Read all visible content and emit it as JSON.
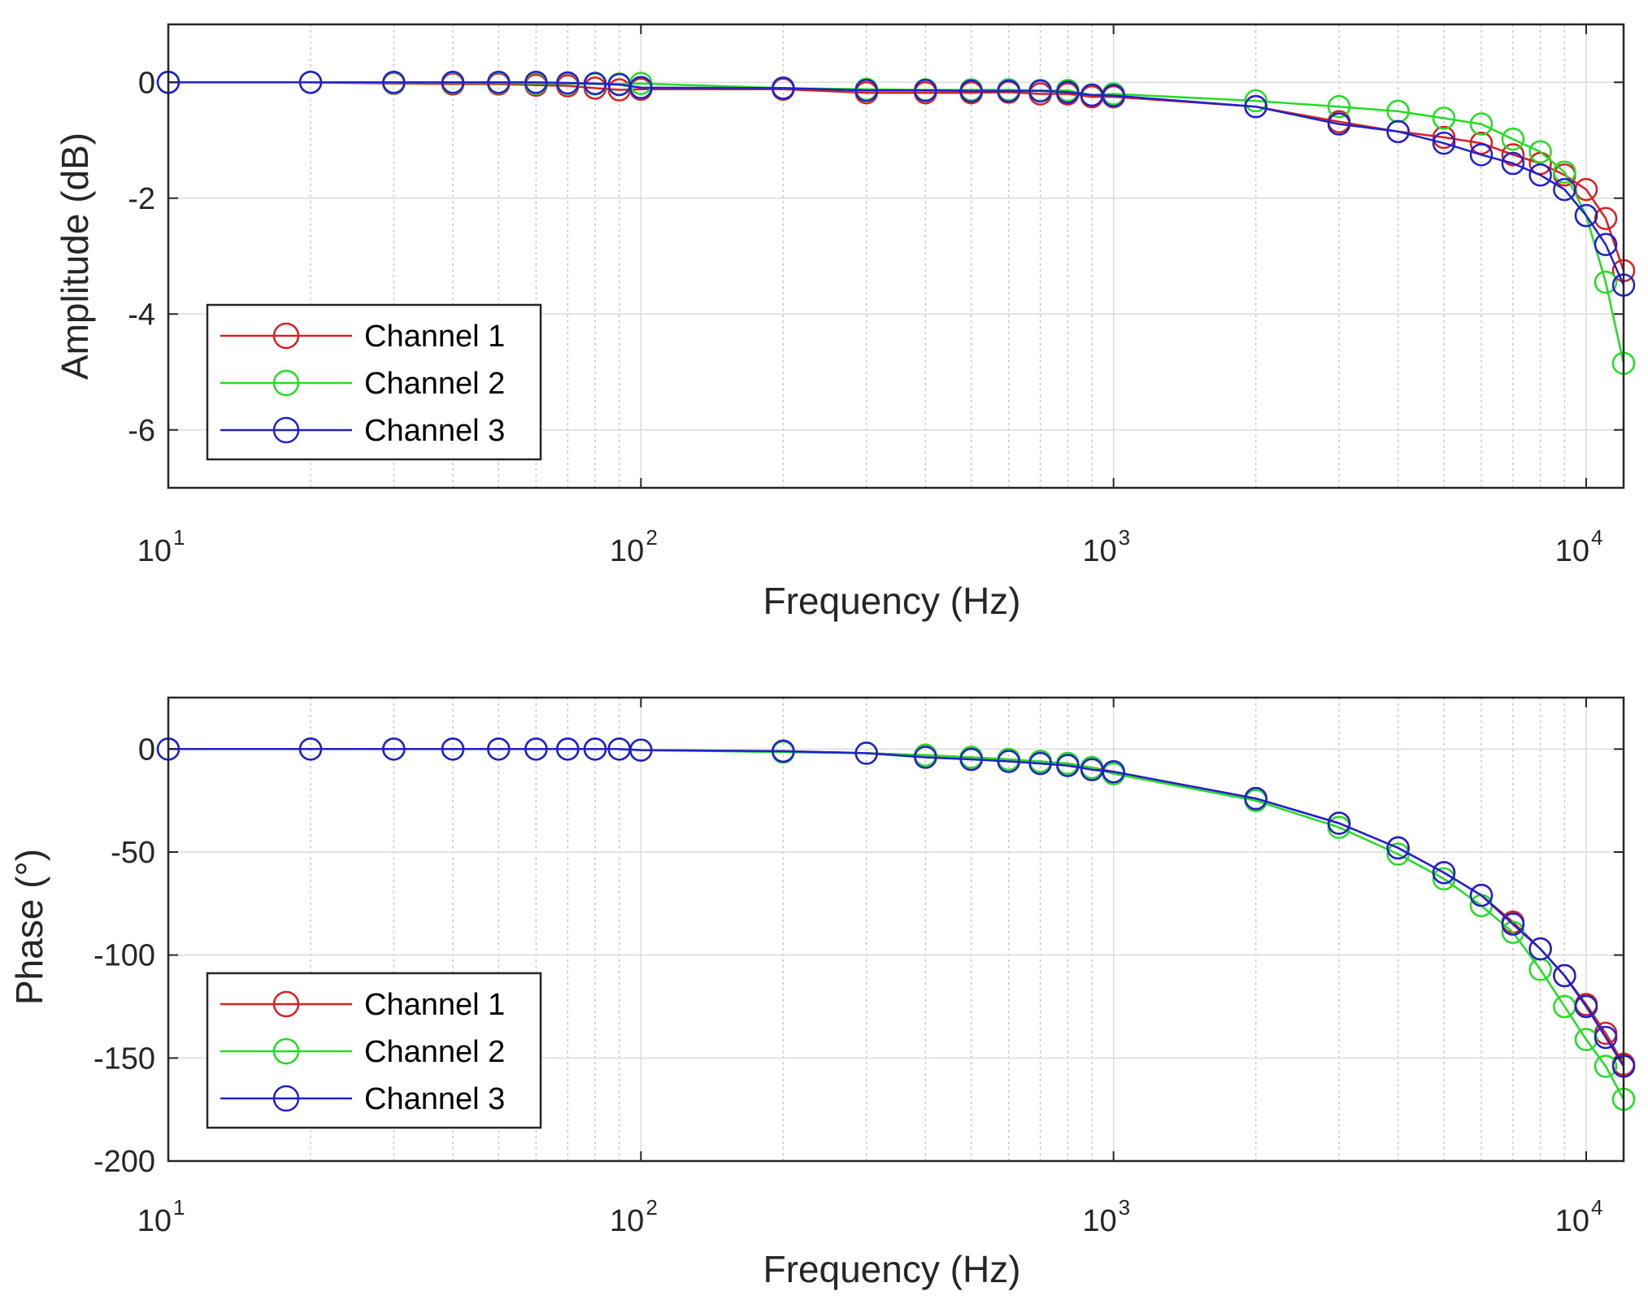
{
  "chart_data": [
    {
      "type": "line",
      "panel": "amplitude",
      "title": "",
      "xlabel": "Frequency (Hz)",
      "ylabel": "Amplitude (dB)",
      "xscale": "log",
      "xlim": [
        10,
        12000
      ],
      "ylim": [
        -7,
        1
      ],
      "xticks": [
        {
          "value": 10,
          "base": "10",
          "exp": "1"
        },
        {
          "value": 100,
          "base": "10",
          "exp": "2"
        },
        {
          "value": 1000,
          "base": "10",
          "exp": "3"
        },
        {
          "value": 10000,
          "base": "10",
          "exp": "4"
        }
      ],
      "yticks": [
        {
          "value": 0,
          "label": "0"
        },
        {
          "value": -2,
          "label": "-2"
        },
        {
          "value": -4,
          "label": "-4"
        },
        {
          "value": -6,
          "label": "-6"
        }
      ],
      "grid": true,
      "legend_position": "bottom-left",
      "series": [
        {
          "name": "Channel 1",
          "color": "#d92020",
          "x": [
            10,
            20,
            30,
            40,
            50,
            60,
            70,
            80,
            90,
            100,
            200,
            300,
            400,
            500,
            600,
            700,
            800,
            900,
            1000,
            2000,
            3000,
            4000,
            5000,
            6000,
            7000,
            8000,
            9000,
            10000,
            11000,
            12000
          ],
          "y": [
            0,
            0,
            -0.02,
            -0.03,
            -0.03,
            -0.05,
            -0.06,
            -0.1,
            -0.13,
            -0.12,
            -0.12,
            -0.18,
            -0.18,
            -0.18,
            -0.17,
            -0.2,
            -0.2,
            -0.25,
            -0.25,
            -0.42,
            -0.68,
            -0.85,
            -0.95,
            -1.05,
            -1.25,
            -1.4,
            -1.6,
            -1.85,
            -2.35,
            -3.25
          ]
        },
        {
          "name": "Channel 2",
          "color": "#22dd22",
          "x": [
            10,
            20,
            30,
            40,
            50,
            60,
            70,
            80,
            90,
            100,
            200,
            300,
            400,
            500,
            600,
            700,
            800,
            900,
            1000,
            2000,
            3000,
            4000,
            5000,
            6000,
            7000,
            8000,
            9000,
            10000,
            11000,
            12000
          ],
          "y": [
            0,
            0,
            -0.01,
            -0.01,
            -0.01,
            -0.02,
            -0.02,
            -0.03,
            -0.03,
            -0.02,
            -0.1,
            -0.12,
            -0.13,
            -0.13,
            -0.13,
            -0.14,
            -0.14,
            -0.22,
            -0.2,
            -0.32,
            -0.42,
            -0.5,
            -0.62,
            -0.72,
            -0.98,
            -1.2,
            -1.55,
            -2.3,
            -3.45,
            -4.85
          ]
        },
        {
          "name": "Channel 3",
          "color": "#2020cc",
          "x": [
            10,
            20,
            30,
            40,
            50,
            60,
            70,
            80,
            90,
            100,
            200,
            300,
            400,
            500,
            600,
            700,
            800,
            900,
            1000,
            2000,
            3000,
            4000,
            5000,
            6000,
            7000,
            8000,
            9000,
            10000,
            11000,
            12000
          ],
          "y": [
            0,
            0,
            0,
            0,
            0,
            0,
            -0.01,
            -0.02,
            -0.04,
            -0.09,
            -0.1,
            -0.14,
            -0.14,
            -0.15,
            -0.15,
            -0.15,
            -0.17,
            -0.22,
            -0.23,
            -0.42,
            -0.72,
            -0.85,
            -1.05,
            -1.25,
            -1.4,
            -1.6,
            -1.85,
            -2.3,
            -2.8,
            -3.5
          ]
        }
      ]
    },
    {
      "type": "line",
      "panel": "phase",
      "title": "",
      "xlabel": "Frequency (Hz)",
      "ylabel": "Phase (°)",
      "xscale": "log",
      "xlim": [
        10,
        12000
      ],
      "ylim": [
        -200,
        25
      ],
      "xticks": [
        {
          "value": 10,
          "base": "10",
          "exp": "1"
        },
        {
          "value": 100,
          "base": "10",
          "exp": "2"
        },
        {
          "value": 1000,
          "base": "10",
          "exp": "3"
        },
        {
          "value": 10000,
          "base": "10",
          "exp": "4"
        }
      ],
      "yticks": [
        {
          "value": 0,
          "label": "0"
        },
        {
          "value": -50,
          "label": "-50"
        },
        {
          "value": -100,
          "label": "-100"
        },
        {
          "value": -150,
          "label": "-150"
        },
        {
          "value": -200,
          "label": "-200"
        }
      ],
      "grid": true,
      "legend_position": "bottom-left",
      "series": [
        {
          "name": "Channel 1",
          "color": "#d92020",
          "x": [
            10,
            20,
            30,
            40,
            50,
            60,
            70,
            80,
            90,
            100,
            200,
            300,
            400,
            500,
            600,
            700,
            800,
            900,
            1000,
            2000,
            3000,
            4000,
            5000,
            6000,
            7000,
            8000,
            9000,
            10000,
            11000,
            12000
          ],
          "y": [
            0,
            0,
            0,
            0,
            0,
            0,
            0,
            0,
            0,
            -0.5,
            -1,
            -2,
            -3,
            -4,
            -5,
            -6,
            -7,
            -9,
            -11,
            -24,
            -36,
            -48,
            -60,
            -71,
            -84,
            -97,
            -110,
            -124,
            -138,
            -153
          ]
        },
        {
          "name": "Channel 2",
          "color": "#22dd22",
          "x": [
            10,
            20,
            30,
            40,
            50,
            60,
            70,
            80,
            90,
            100,
            200,
            300,
            400,
            500,
            600,
            700,
            800,
            900,
            1000,
            2000,
            3000,
            4000,
            5000,
            6000,
            7000,
            8000,
            9000,
            10000,
            11000,
            12000
          ],
          "y": [
            0,
            0,
            0,
            0,
            0,
            0,
            0,
            0,
            0,
            -0.5,
            -1.5,
            -2,
            -3,
            -4,
            -5,
            -6,
            -7,
            -9,
            -12,
            -25,
            -38,
            -51,
            -63,
            -76,
            -89,
            -107,
            -125,
            -141,
            -154,
            -170
          ]
        },
        {
          "name": "Channel 3",
          "color": "#2020cc",
          "x": [
            10,
            20,
            30,
            40,
            50,
            60,
            70,
            80,
            90,
            100,
            200,
            300,
            400,
            500,
            600,
            700,
            800,
            900,
            1000,
            2000,
            3000,
            4000,
            5000,
            6000,
            7000,
            8000,
            9000,
            10000,
            11000,
            12000
          ],
          "y": [
            0,
            0,
            0,
            0,
            0,
            0,
            0,
            0,
            0,
            -0.5,
            -1,
            -2,
            -4,
            -5,
            -6,
            -7,
            -8,
            -10,
            -11,
            -24,
            -36,
            -48,
            -60,
            -71,
            -85,
            -97,
            -110,
            -125,
            -140,
            -154
          ]
        }
      ]
    }
  ]
}
